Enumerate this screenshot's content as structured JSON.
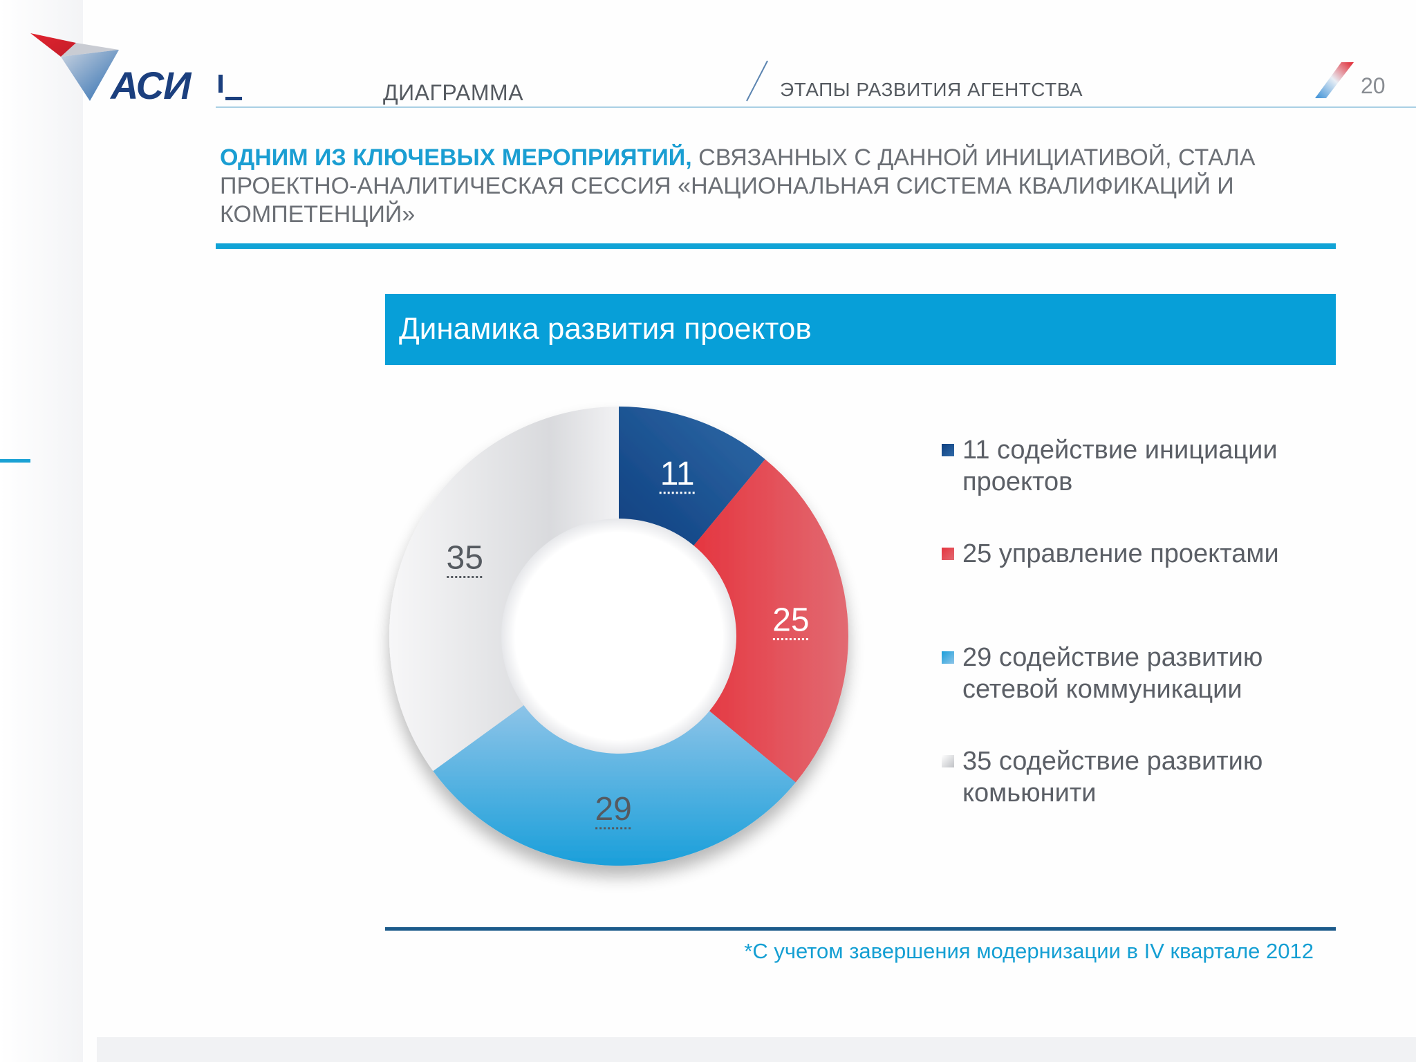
{
  "header": {
    "logo_text": "АСИ",
    "section": "ДИАГРАММА",
    "stage": "ЭТАПЫ РАЗВИТИЯ АГЕНТСТВА",
    "page_number": "20"
  },
  "lead": {
    "highlight": "ОДНИМ ИЗ КЛЮЧЕВЫХ МЕРОПРИЯТИЙ,",
    "rest": " СВЯЗАННЫХ С ДАННОЙ ИНИЦИАТИВОЙ, СТАЛА ПРОЕКТНО-АНАЛИТИЧЕСКАЯ СЕССИЯ «НАЦИОНАЛЬНАЯ СИСТЕМА КВАЛИФИКАЦИЙ И КОМПЕТЕНЦИЙ»"
  },
  "chart_data": {
    "type": "pie",
    "variant": "donut",
    "title": "Динамика развития проектов",
    "categories": [
      "11 содействие инициации проектов",
      "25 управление проектами",
      "29 содействие развитию сетевой коммуникации",
      "35 содействие развитию комьюнити"
    ],
    "values": [
      11,
      25,
      29,
      35
    ],
    "data_labels": [
      "11",
      "25",
      "29",
      "35"
    ],
    "colors": [
      "#1b4f8c",
      "#e14550",
      "#3aa3dc",
      "#e2e3e6"
    ],
    "legend_position": "right"
  },
  "footnote": "*С учетом завершения модернизации в IV квартале 2012"
}
